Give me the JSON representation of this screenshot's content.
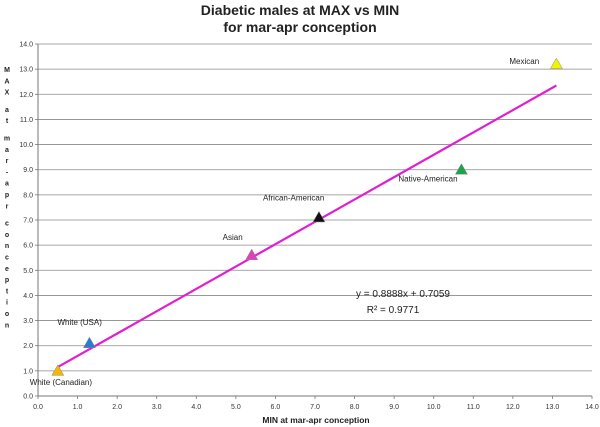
{
  "chart_data": {
    "type": "scatter",
    "title": [
      "Diabetic males at MAX vs MIN",
      "for mar-apr conception"
    ],
    "xlabel": "MIN at mar-apr conception",
    "ylabel": "MAX at mar-apr conception",
    "xlim": [
      0,
      14
    ],
    "ylim": [
      0,
      14
    ],
    "x_ticks": [
      "0.0",
      "1.0",
      "2.0",
      "3.0",
      "4.0",
      "5.0",
      "6.0",
      "7.0",
      "8.0",
      "9.0",
      "10.0",
      "11.0",
      "12.0",
      "13.0",
      "14.0"
    ],
    "y_ticks": [
      "0.0",
      "1.0",
      "2.0",
      "3.0",
      "4.0",
      "5.0",
      "6.0",
      "7.0",
      "8.0",
      "9.0",
      "10.0",
      "11.0",
      "12.0",
      "13.0",
      "14.0"
    ],
    "grid": "horizontal",
    "points": [
      {
        "label": "White (Canadian)",
        "x": 0.5,
        "y": 1.0,
        "color": "#f5b800"
      },
      {
        "label": "White (USA)",
        "x": 1.3,
        "y": 2.1,
        "color": "#2a7bd4"
      },
      {
        "label": "Asian",
        "x": 5.4,
        "y": 5.6,
        "color": "#e040c0"
      },
      {
        "label": "African-American",
        "x": 7.1,
        "y": 7.1,
        "color": "#111111"
      },
      {
        "label": "Native-American",
        "x": 10.7,
        "y": 9.0,
        "color": "#1ea34a"
      },
      {
        "label": "Mexican",
        "x": 13.1,
        "y": 13.2,
        "color": "#f4f400"
      }
    ],
    "trendline": {
      "slope": 0.8888,
      "intercept": 0.7059,
      "x_range": [
        0.5,
        13.1
      ],
      "color": "#e020d0"
    },
    "annotations": {
      "equation": "y = 0.8888x + 0.7059",
      "r_squared": "R² = 0.9771"
    }
  }
}
